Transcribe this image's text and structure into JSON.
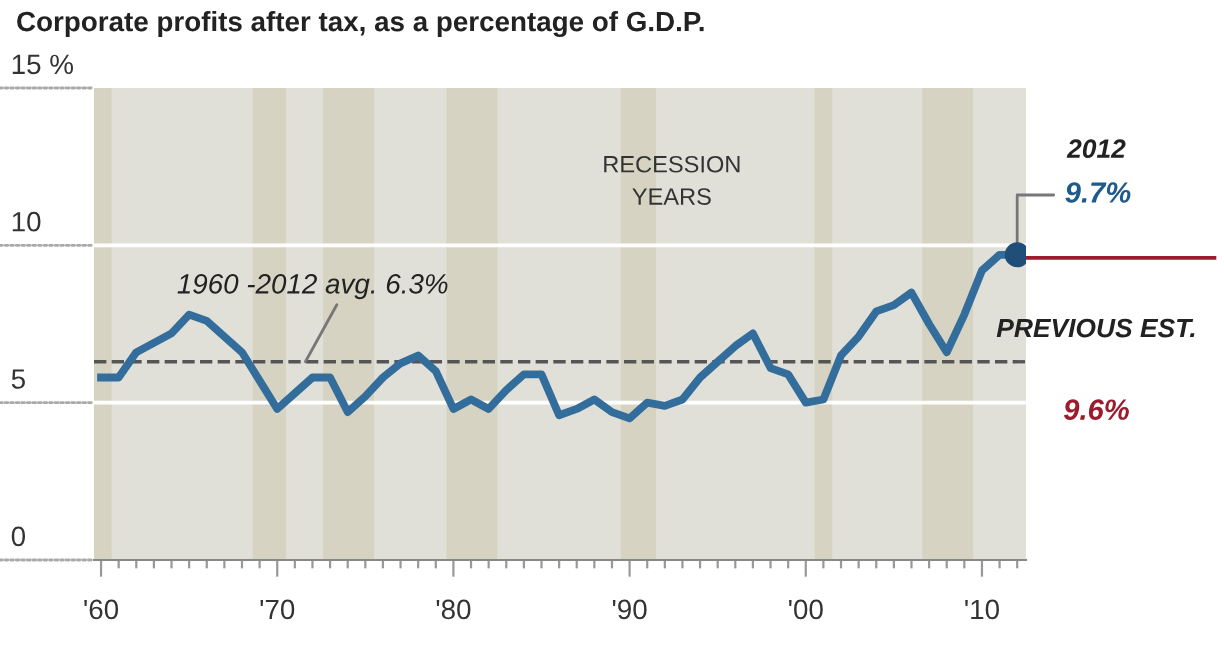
{
  "chart_data": {
    "type": "line",
    "title": "Corporate profits after tax, as a percentage of G.D.P.",
    "x": [
      1960,
      1961,
      1962,
      1963,
      1964,
      1965,
      1966,
      1967,
      1968,
      1969,
      1970,
      1971,
      1972,
      1973,
      1974,
      1975,
      1976,
      1977,
      1978,
      1979,
      1980,
      1981,
      1982,
      1983,
      1984,
      1985,
      1986,
      1987,
      1988,
      1989,
      1990,
      1991,
      1992,
      1993,
      1994,
      1995,
      1996,
      1997,
      1998,
      1999,
      2000,
      2001,
      2002,
      2003,
      2004,
      2005,
      2006,
      2007,
      2008,
      2009,
      2010,
      2011,
      2012
    ],
    "series": [
      {
        "color": "#336d9b",
        "values": [
          5.8,
          5.8,
          6.6,
          6.9,
          7.2,
          7.8,
          7.6,
          7.1,
          6.6,
          5.7,
          4.8,
          5.3,
          5.8,
          5.8,
          4.7,
          5.2,
          5.8,
          6.25,
          6.5,
          6.0,
          4.8,
          5.1,
          4.8,
          5.4,
          5.9,
          5.9,
          4.6,
          4.8,
          5.1,
          4.7,
          4.5,
          5.0,
          4.9,
          5.1,
          5.8,
          6.3,
          6.8,
          7.2,
          6.1,
          5.9,
          5.0,
          5.1,
          6.5,
          7.1,
          7.9,
          8.1,
          8.5,
          7.5,
          6.6,
          7.8,
          9.2,
          9.7,
          9.7
        ]
      }
    ],
    "xlim": [
      1959.6,
      2012.5
    ],
    "ylim": [
      0,
      15
    ],
    "yticks": [
      0,
      5,
      10,
      {
        "value": 15,
        "label": "15 %"
      }
    ],
    "xticks": [
      {
        "value": 1960,
        "label": "'60"
      },
      {
        "value": 1961,
        "label": null
      },
      {
        "value": 1962,
        "label": null
      },
      {
        "value": 1963,
        "label": null
      },
      {
        "value": 1964,
        "label": null
      },
      {
        "value": 1965,
        "label": null
      },
      {
        "value": 1966,
        "label": null
      },
      {
        "value": 1967,
        "label": null
      },
      {
        "value": 1968,
        "label": null
      },
      {
        "value": 1969,
        "label": null
      },
      {
        "value": 1970,
        "label": "'70"
      },
      {
        "value": 1971,
        "label": null
      },
      {
        "value": 1972,
        "label": null
      },
      {
        "value": 1973,
        "label": null
      },
      {
        "value": 1974,
        "label": null
      },
      {
        "value": 1975,
        "label": null
      },
      {
        "value": 1976,
        "label": null
      },
      {
        "value": 1977,
        "label": null
      },
      {
        "value": 1978,
        "label": null
      },
      {
        "value": 1979,
        "label": null
      },
      {
        "value": 1980,
        "label": "'80"
      },
      {
        "value": 1981,
        "label": null
      },
      {
        "value": 1982,
        "label": null
      },
      {
        "value": 1983,
        "label": null
      },
      {
        "value": 1984,
        "label": null
      },
      {
        "value": 1985,
        "label": null
      },
      {
        "value": 1986,
        "label": null
      },
      {
        "value": 1987,
        "label": null
      },
      {
        "value": 1988,
        "label": null
      },
      {
        "value": 1989,
        "label": null
      },
      {
        "value": 1990,
        "label": "'90"
      },
      {
        "value": 1991,
        "label": null
      },
      {
        "value": 1992,
        "label": null
      },
      {
        "value": 1993,
        "label": null
      },
      {
        "value": 1994,
        "label": null
      },
      {
        "value": 1995,
        "label": null
      },
      {
        "value": 1996,
        "label": null
      },
      {
        "value": 1997,
        "label": null
      },
      {
        "value": 1998,
        "label": null
      },
      {
        "value": 1999,
        "label": null
      },
      {
        "value": 2000,
        "label": "'00"
      },
      {
        "value": 2001,
        "label": null
      },
      {
        "value": 2002,
        "label": null
      },
      {
        "value": 2003,
        "label": null
      },
      {
        "value": 2004,
        "label": null
      },
      {
        "value": 2005,
        "label": null
      },
      {
        "value": 2006,
        "label": null
      },
      {
        "value": 2007,
        "label": null
      },
      {
        "value": 2008,
        "label": null
      },
      {
        "value": 2009,
        "label": null
      },
      {
        "value": 2010,
        "label": "'10"
      },
      {
        "value": 2011,
        "label": null
      },
      {
        "value": 2012,
        "label": null
      }
    ],
    "grid": "y",
    "line_style": "solid",
    "bands": [
      {
        "axis": "x",
        "from": 1959.6,
        "to": 1960.6,
        "color": "#d6d3c2"
      },
      {
        "axis": "x",
        "from": 1968.6,
        "to": 1970.5,
        "color": "#d6d3c2"
      },
      {
        "axis": "x",
        "from": 1972.6,
        "to": 1975.5,
        "color": "#d6d3c2"
      },
      {
        "axis": "x",
        "from": 1979.6,
        "to": 1982.5,
        "color": "#d6d3c2"
      },
      {
        "axis": "x",
        "from": 1989.5,
        "to": 1991.5,
        "color": "#d6d3c2"
      },
      {
        "axis": "x",
        "from": 2000.5,
        "to": 2001.5,
        "color": "#d6d3c2"
      },
      {
        "axis": "x",
        "from": 2006.6,
        "to": 2009.5,
        "color": "#d6d3c2"
      }
    ],
    "ref_lines": [
      {
        "axis": "y",
        "value": 6.3,
        "label": "1960 -2012 avg. 6.3%",
        "color": "#555555",
        "line_style": "dashed"
      }
    ],
    "annotations": [
      "RECESSION\nYEARS",
      "2012",
      {
        "text": "9.7%",
        "x": 2012,
        "y": 9.7
      },
      "PREVIOUS EST.",
      "9.6%"
    ]
  }
}
